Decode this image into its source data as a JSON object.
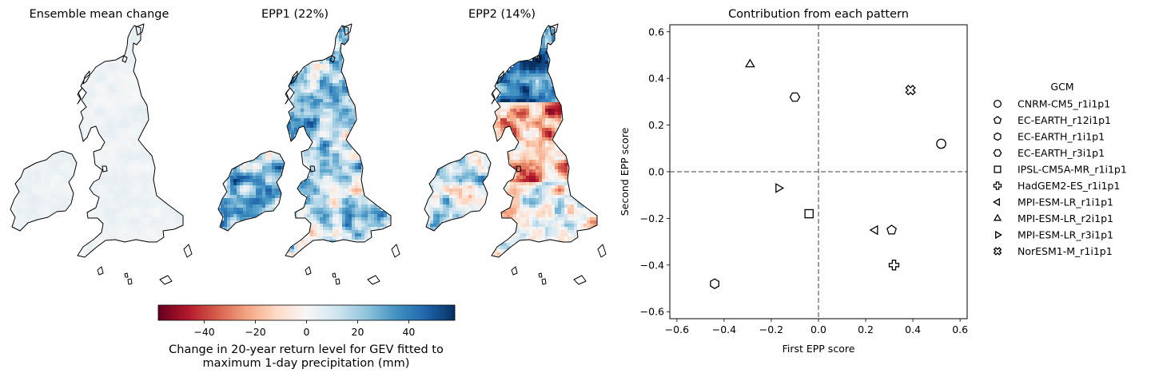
{
  "maps": [
    {
      "title": "Ensemble mean change",
      "field": "mean"
    },
    {
      "title": "EPP1 (22%)",
      "field": "epp1"
    },
    {
      "title": "EPP2 (14%)",
      "field": "epp2"
    }
  ],
  "colorbar": {
    "label_line1": "Change in 20-year return level for GEV fitted to",
    "label_line2": "maximum 1-day precipitation (mm)",
    "min": -58,
    "max": 58,
    "ticks": [
      -40,
      -20,
      0,
      20,
      40
    ],
    "tick_labels": [
      "−40",
      "−20",
      "0",
      "20",
      "40"
    ],
    "colormap": "RdBu"
  },
  "chart_data": {
    "type": "scatter",
    "title": "Contribution from each pattern",
    "xlabel": "First EPP score",
    "ylabel": "Second EPP score",
    "xlim": [
      -0.63,
      0.63
    ],
    "ylim": [
      -0.63,
      0.63
    ],
    "xticks": [
      -0.6,
      -0.4,
      -0.2,
      0.0,
      0.2,
      0.4,
      0.6
    ],
    "xtick_labels": [
      "−0.6",
      "−0.4",
      "−0.2",
      "0.0",
      "0.2",
      "0.4",
      "0.6"
    ],
    "yticks": [
      -0.6,
      -0.4,
      -0.2,
      0.0,
      0.2,
      0.4,
      0.6
    ],
    "ytick_labels": [
      "−0.6",
      "−0.4",
      "−0.2",
      "0.0",
      "0.2",
      "0.4",
      "0.6"
    ],
    "reference_lines": {
      "x": 0,
      "y": 0,
      "style": "dashed",
      "color": "#808080"
    },
    "legend_title": "GCM",
    "legend_position": "right",
    "points": [
      {
        "name": "CNRM-CM5_r1i1p1",
        "marker": "circle",
        "x": 0.52,
        "y": 0.12
      },
      {
        "name": "EC-EARTH_r12i1p1",
        "marker": "pentagon",
        "x": 0.31,
        "y": -0.25
      },
      {
        "name": "EC-EARTH_r1i1p1",
        "marker": "hexagon",
        "x": -0.44,
        "y": -0.48
      },
      {
        "name": "EC-EARTH_r3i1p1",
        "marker": "hexagon2",
        "x": -0.1,
        "y": 0.32
      },
      {
        "name": "IPSL-CM5A-MR_r1i1p1",
        "marker": "square",
        "x": -0.04,
        "y": -0.18
      },
      {
        "name": "HadGEM2-ES_r1i1p1",
        "marker": "plus",
        "x": 0.32,
        "y": -0.4
      },
      {
        "name": "MPI-ESM-LR_r1i1p1",
        "marker": "triangle-left",
        "x": 0.24,
        "y": -0.25
      },
      {
        "name": "MPI-ESM-LR_r2i1p1",
        "marker": "triangle-up",
        "x": -0.29,
        "y": 0.46
      },
      {
        "name": "MPI-ESM-LR_r3i1p1",
        "marker": "triangle-right",
        "x": -0.17,
        "y": -0.07
      },
      {
        "name": "NorESM1-M_r1i1p1",
        "marker": "x-filled",
        "x": 0.39,
        "y": 0.35
      }
    ]
  }
}
